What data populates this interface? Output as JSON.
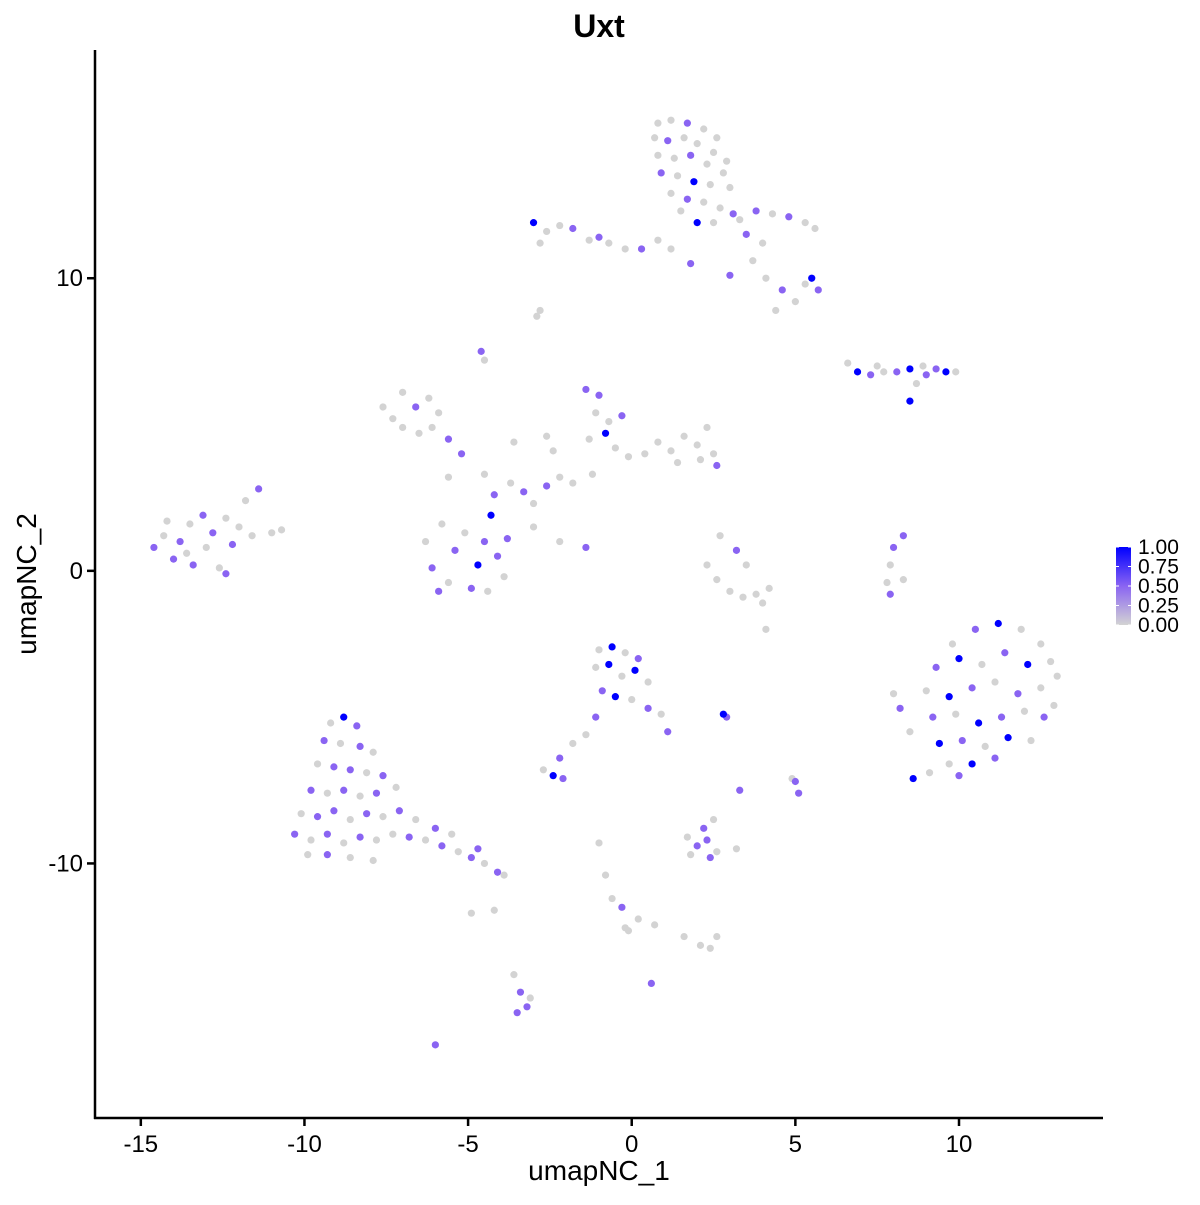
{
  "chart_data": {
    "type": "scatter",
    "title": "Uxt",
    "xlabel": "umapNC_1",
    "ylabel": "umapNC_2",
    "xlim": [
      -16.4,
      14.4
    ],
    "ylim": [
      -18.7,
      17.8
    ],
    "x_ticks": [
      -15,
      -10,
      -5,
      0,
      5,
      10
    ],
    "x_tick_labels": [
      "-15",
      "-10",
      "-5",
      "0",
      "5",
      "10"
    ],
    "y_ticks": [
      -10,
      0,
      10
    ],
    "y_tick_labels": [
      "-10",
      "0",
      "10"
    ],
    "grid": false,
    "legend": {
      "placement": "right",
      "type": "colorbar",
      "range": [
        0,
        1
      ],
      "ticks": [
        1.0,
        0.75,
        0.5,
        0.25,
        0.0
      ],
      "tick_labels": [
        "1.00",
        "0.75",
        "0.50",
        "0.25",
        "0.00"
      ]
    },
    "colors": {
      "low": "#d3d3d3",
      "mid": "#8a64f2",
      "high": "#0000ff"
    },
    "point_fields": [
      "x",
      "y",
      "expression"
    ],
    "points": [
      [
        0.8,
        15.3,
        0
      ],
      [
        1.2,
        15.4,
        0
      ],
      [
        1.7,
        15.3,
        0.5
      ],
      [
        2.2,
        15.1,
        0
      ],
      [
        2.6,
        14.8,
        0
      ],
      [
        0.7,
        14.8,
        0
      ],
      [
        1.1,
        14.7,
        0.5
      ],
      [
        1.6,
        14.8,
        0
      ],
      [
        2.0,
        14.6,
        0
      ],
      [
        2.5,
        14.3,
        0
      ],
      [
        2.9,
        14.0,
        0
      ],
      [
        0.8,
        14.2,
        0
      ],
      [
        1.3,
        14.1,
        0
      ],
      [
        1.8,
        14.2,
        0.5
      ],
      [
        2.3,
        13.9,
        0
      ],
      [
        2.8,
        13.6,
        0
      ],
      [
        0.9,
        13.6,
        0.5
      ],
      [
        1.4,
        13.5,
        0
      ],
      [
        1.9,
        13.3,
        1
      ],
      [
        2.4,
        13.2,
        0
      ],
      [
        3.0,
        13.1,
        0
      ],
      [
        1.2,
        12.9,
        0
      ],
      [
        1.7,
        12.7,
        0.5
      ],
      [
        2.2,
        12.6,
        0
      ],
      [
        2.7,
        12.4,
        0
      ],
      [
        3.1,
        12.2,
        0.5
      ],
      [
        1.5,
        12.3,
        0
      ],
      [
        2.0,
        11.9,
        1
      ],
      [
        2.5,
        11.9,
        0
      ],
      [
        3.3,
        12.0,
        0
      ],
      [
        3.8,
        12.3,
        0.5
      ],
      [
        4.3,
        12.2,
        0
      ],
      [
        4.8,
        12.1,
        0.5
      ],
      [
        5.3,
        11.9,
        0
      ],
      [
        5.6,
        11.7,
        0
      ],
      [
        3.5,
        11.5,
        0.5
      ],
      [
        4.0,
        11.2,
        0
      ],
      [
        3.7,
        10.6,
        0
      ],
      [
        4.1,
        10.0,
        0
      ],
      [
        4.6,
        9.6,
        0.5
      ],
      [
        5.0,
        9.2,
        0
      ],
      [
        4.4,
        8.9,
        0
      ],
      [
        5.5,
        10.0,
        1
      ],
      [
        5.7,
        9.6,
        0.5
      ],
      [
        5.3,
        9.8,
        0
      ],
      [
        3.0,
        10.1,
        0.5
      ],
      [
        -3.0,
        11.9,
        1
      ],
      [
        -2.6,
        11.6,
        0
      ],
      [
        -2.2,
        11.8,
        0
      ],
      [
        -1.8,
        11.7,
        0.5
      ],
      [
        -1.3,
        11.3,
        0
      ],
      [
        -2.8,
        11.2,
        0
      ],
      [
        -0.7,
        11.2,
        0
      ],
      [
        -0.2,
        11.0,
        0
      ],
      [
        0.3,
        11.0,
        0.5
      ],
      [
        0.8,
        11.3,
        0
      ],
      [
        1.2,
        11.0,
        0
      ],
      [
        1.8,
        10.5,
        0.5
      ],
      [
        -1.0,
        11.4,
        0.5
      ],
      [
        -2.8,
        8.9,
        0
      ],
      [
        -2.9,
        8.7,
        0
      ],
      [
        -4.6,
        7.5,
        0.5
      ],
      [
        -4.5,
        7.2,
        0
      ],
      [
        6.6,
        7.1,
        0
      ],
      [
        6.9,
        6.8,
        1
      ],
      [
        7.3,
        6.7,
        0.5
      ],
      [
        7.7,
        6.8,
        0
      ],
      [
        8.1,
        6.8,
        0.5
      ],
      [
        8.5,
        6.9,
        1
      ],
      [
        8.9,
        7.0,
        0
      ],
      [
        9.3,
        6.9,
        0.5
      ],
      [
        9.6,
        6.8,
        1
      ],
      [
        9.9,
        6.8,
        0
      ],
      [
        8.7,
        6.4,
        0
      ],
      [
        8.5,
        5.8,
        1
      ],
      [
        7.5,
        7.0,
        0
      ],
      [
        9.0,
        6.7,
        0.5
      ],
      [
        -14.6,
        0.8,
        0.5
      ],
      [
        -14.3,
        1.2,
        0
      ],
      [
        -14.0,
        0.4,
        0.5
      ],
      [
        -13.8,
        1.0,
        0.5
      ],
      [
        -13.5,
        1.6,
        0
      ],
      [
        -13.4,
        0.2,
        0.5
      ],
      [
        -13.1,
        1.9,
        0.5
      ],
      [
        -13.0,
        0.8,
        0
      ],
      [
        -12.8,
        1.3,
        0.5
      ],
      [
        -12.6,
        0.1,
        0
      ],
      [
        -12.4,
        1.8,
        0
      ],
      [
        -12.2,
        0.9,
        0.5
      ],
      [
        -12.0,
        1.5,
        0
      ],
      [
        -11.8,
        2.4,
        0
      ],
      [
        -11.6,
        1.2,
        0
      ],
      [
        -11.4,
        2.8,
        0.5
      ],
      [
        -11.0,
        1.3,
        0
      ],
      [
        -10.7,
        1.4,
        0
      ],
      [
        -12.4,
        -0.1,
        0.5
      ],
      [
        -14.2,
        1.7,
        0
      ],
      [
        -13.6,
        0.6,
        0
      ],
      [
        -7.6,
        5.6,
        0
      ],
      [
        -7.3,
        5.2,
        0
      ],
      [
        -7.0,
        6.1,
        0
      ],
      [
        -6.6,
        5.6,
        0.5
      ],
      [
        -6.2,
        5.9,
        0
      ],
      [
        -5.9,
        5.4,
        0
      ],
      [
        -7.0,
        4.9,
        0
      ],
      [
        -6.5,
        4.7,
        0
      ],
      [
        -5.6,
        4.5,
        0.5
      ],
      [
        -5.2,
        4.0,
        0.5
      ],
      [
        -6.1,
        4.9,
        0
      ],
      [
        -6.3,
        1.0,
        0
      ],
      [
        -6.1,
        0.1,
        0.5
      ],
      [
        -5.8,
        1.6,
        0
      ],
      [
        -5.6,
        -0.4,
        0
      ],
      [
        -5.4,
        0.7,
        0.5
      ],
      [
        -5.1,
        1.3,
        0
      ],
      [
        -4.9,
        -0.6,
        0.5
      ],
      [
        -4.7,
        0.2,
        1
      ],
      [
        -4.5,
        1.0,
        0.5
      ],
      [
        -4.3,
        1.9,
        1
      ],
      [
        -4.1,
        0.5,
        0.5
      ],
      [
        -3.9,
        -0.2,
        0
      ],
      [
        -3.8,
        1.1,
        0.5
      ],
      [
        -5.9,
        -0.7,
        0.5
      ],
      [
        -4.4,
        -0.7,
        0
      ],
      [
        -4.5,
        3.3,
        0
      ],
      [
        -4.2,
        2.6,
        0.5
      ],
      [
        -3.7,
        3.0,
        0
      ],
      [
        -3.3,
        2.7,
        0.5
      ],
      [
        -3.0,
        2.3,
        0
      ],
      [
        -2.6,
        2.9,
        0.5
      ],
      [
        -2.2,
        3.2,
        0
      ],
      [
        -1.8,
        3.0,
        0
      ],
      [
        -1.2,
        3.3,
        0
      ],
      [
        -3.0,
        1.5,
        0
      ],
      [
        -2.2,
        1.0,
        0
      ],
      [
        -1.4,
        0.8,
        0.5
      ],
      [
        -2.4,
        4.1,
        0
      ],
      [
        -3.6,
        4.4,
        0
      ],
      [
        -5.6,
        3.2,
        0
      ],
      [
        -2.6,
        4.6,
        0
      ],
      [
        -1.4,
        6.2,
        0.5
      ],
      [
        -1.0,
        6.0,
        0.5
      ],
      [
        -1.1,
        5.4,
        0
      ],
      [
        -0.7,
        5.1,
        0
      ],
      [
        -0.3,
        5.3,
        0.5
      ],
      [
        -0.8,
        4.7,
        1
      ],
      [
        -0.5,
        4.2,
        0
      ],
      [
        -0.1,
        3.9,
        0
      ],
      [
        -1.3,
        4.5,
        0
      ],
      [
        0.4,
        4.0,
        0
      ],
      [
        0.8,
        4.4,
        0
      ],
      [
        1.2,
        4.1,
        0
      ],
      [
        1.6,
        4.6,
        0
      ],
      [
        2.0,
        4.3,
        0
      ],
      [
        2.3,
        4.9,
        0
      ],
      [
        2.5,
        4.0,
        0
      ],
      [
        2.6,
        3.6,
        0.5
      ],
      [
        2.1,
        3.8,
        0
      ],
      [
        1.4,
        3.7,
        0
      ],
      [
        2.3,
        0.2,
        0
      ],
      [
        2.6,
        -0.3,
        0
      ],
      [
        3.0,
        -0.7,
        0
      ],
      [
        3.4,
        -0.9,
        0
      ],
      [
        3.8,
        -0.8,
        0
      ],
      [
        4.2,
        -0.6,
        0
      ],
      [
        3.2,
        0.7,
        0.5
      ],
      [
        3.5,
        0.2,
        0
      ],
      [
        2.7,
        1.2,
        0
      ],
      [
        4.0,
        -1.1,
        0
      ],
      [
        4.1,
        -2.0,
        0
      ],
      [
        8.3,
        1.2,
        0.5
      ],
      [
        8.0,
        0.8,
        0.5
      ],
      [
        7.9,
        0.2,
        0
      ],
      [
        7.8,
        -0.4,
        0
      ],
      [
        7.9,
        -0.8,
        0.5
      ],
      [
        8.3,
        -0.3,
        0
      ],
      [
        9.8,
        -2.5,
        0
      ],
      [
        10.5,
        -2.0,
        0.5
      ],
      [
        11.2,
        -1.8,
        1
      ],
      [
        11.9,
        -2.0,
        0
      ],
      [
        12.5,
        -2.5,
        0
      ],
      [
        9.3,
        -3.3,
        0.5
      ],
      [
        10.0,
        -3.0,
        1
      ],
      [
        10.7,
        -3.2,
        0
      ],
      [
        11.4,
        -2.8,
        0.5
      ],
      [
        12.1,
        -3.2,
        1
      ],
      [
        12.8,
        -3.1,
        0
      ],
      [
        9.0,
        -4.1,
        0
      ],
      [
        9.7,
        -4.3,
        1
      ],
      [
        10.4,
        -4.0,
        0.5
      ],
      [
        11.1,
        -3.8,
        0
      ],
      [
        11.8,
        -4.2,
        0.5
      ],
      [
        12.5,
        -4.0,
        0
      ],
      [
        13.0,
        -3.6,
        0
      ],
      [
        9.2,
        -5.0,
        0.5
      ],
      [
        9.9,
        -4.9,
        0
      ],
      [
        10.6,
        -5.2,
        1
      ],
      [
        11.3,
        -5.0,
        0.5
      ],
      [
        12.0,
        -4.8,
        0
      ],
      [
        12.6,
        -5.0,
        0.5
      ],
      [
        9.4,
        -5.9,
        1
      ],
      [
        10.1,
        -5.8,
        0.5
      ],
      [
        10.8,
        -6.0,
        0
      ],
      [
        11.5,
        -5.7,
        1
      ],
      [
        12.2,
        -5.8,
        0
      ],
      [
        9.7,
        -6.6,
        0
      ],
      [
        10.4,
        -6.6,
        1
      ],
      [
        11.1,
        -6.4,
        0.5
      ],
      [
        8.2,
        -4.7,
        0.5
      ],
      [
        8.5,
        -5.5,
        0
      ],
      [
        8.6,
        -7.1,
        1
      ],
      [
        9.1,
        -6.9,
        0
      ],
      [
        10.0,
        -7.0,
        0.5
      ],
      [
        8.0,
        -4.2,
        0
      ],
      [
        12.9,
        -4.6,
        0
      ],
      [
        -1.0,
        -2.7,
        0
      ],
      [
        -0.6,
        -2.6,
        1
      ],
      [
        -0.2,
        -2.8,
        0
      ],
      [
        0.2,
        -3.0,
        0.5
      ],
      [
        -1.1,
        -3.3,
        0
      ],
      [
        -0.7,
        -3.2,
        1
      ],
      [
        -0.3,
        -3.6,
        0
      ],
      [
        0.1,
        -3.4,
        1
      ],
      [
        0.5,
        -3.8,
        0
      ],
      [
        -0.9,
        -4.1,
        0.5
      ],
      [
        -0.5,
        -4.3,
        1
      ],
      [
        0.0,
        -4.4,
        0
      ],
      [
        0.5,
        -4.7,
        0.5
      ],
      [
        0.9,
        -4.9,
        0
      ],
      [
        1.1,
        -5.5,
        0.5
      ],
      [
        -1.1,
        -5.0,
        0.5
      ],
      [
        -1.4,
        -5.6,
        0
      ],
      [
        -1.8,
        -5.9,
        0
      ],
      [
        -2.2,
        -6.4,
        0.5
      ],
      [
        -2.7,
        -6.8,
        0
      ],
      [
        -2.4,
        -7.0,
        1
      ],
      [
        -2.1,
        -7.1,
        0.5
      ],
      [
        2.8,
        -4.9,
        1
      ],
      [
        2.9,
        -5.0,
        0.5
      ],
      [
        3.3,
        -7.5,
        0.5
      ],
      [
        5.0,
        -7.2,
        0.5
      ],
      [
        5.1,
        -7.6,
        0.5
      ],
      [
        4.9,
        -7.1,
        0
      ],
      [
        1.7,
        -9.1,
        0
      ],
      [
        2.0,
        -9.4,
        0.5
      ],
      [
        2.3,
        -9.2,
        0.5
      ],
      [
        2.6,
        -9.6,
        0
      ],
      [
        2.4,
        -9.8,
        0.5
      ],
      [
        1.8,
        -9.7,
        0
      ],
      [
        2.2,
        -8.8,
        0.5
      ],
      [
        3.2,
        -9.5,
        0
      ],
      [
        2.5,
        -8.5,
        0
      ],
      [
        -1.0,
        -9.3,
        0
      ],
      [
        -0.8,
        -10.4,
        0
      ],
      [
        -0.6,
        -11.2,
        0
      ],
      [
        -0.3,
        -11.5,
        0.5
      ],
      [
        -0.2,
        -12.2,
        0
      ],
      [
        0.2,
        -11.9,
        0
      ],
      [
        0.7,
        -12.1,
        0
      ],
      [
        1.6,
        -12.5,
        0
      ],
      [
        2.1,
        -12.8,
        0
      ],
      [
        2.4,
        -12.9,
        0
      ],
      [
        2.6,
        -12.5,
        0
      ],
      [
        0.6,
        -14.1,
        0.5
      ],
      [
        -0.1,
        -12.3,
        0
      ],
      [
        -3.6,
        -13.8,
        0
      ],
      [
        -3.4,
        -14.4,
        0.5
      ],
      [
        -3.2,
        -14.9,
        0.5
      ],
      [
        -3.5,
        -15.1,
        0.5
      ],
      [
        -3.1,
        -14.6,
        0
      ],
      [
        -6.0,
        -16.2,
        0.5
      ],
      [
        -4.2,
        -11.6,
        0
      ],
      [
        -4.9,
        -11.7,
        0
      ],
      [
        -9.2,
        -5.2,
        0
      ],
      [
        -8.8,
        -5.0,
        1
      ],
      [
        -8.4,
        -5.3,
        0.5
      ],
      [
        -9.4,
        -5.8,
        0.5
      ],
      [
        -8.9,
        -5.9,
        0
      ],
      [
        -8.3,
        -6.0,
        0.5
      ],
      [
        -7.9,
        -6.2,
        0
      ],
      [
        -9.6,
        -6.6,
        0
      ],
      [
        -9.1,
        -6.7,
        0.5
      ],
      [
        -8.6,
        -6.8,
        0.5
      ],
      [
        -8.1,
        -6.9,
        0
      ],
      [
        -7.6,
        -7.0,
        0.5
      ],
      [
        -9.8,
        -7.5,
        0.5
      ],
      [
        -9.3,
        -7.6,
        0
      ],
      [
        -8.8,
        -7.5,
        0.5
      ],
      [
        -8.3,
        -7.7,
        0
      ],
      [
        -7.8,
        -7.6,
        0.5
      ],
      [
        -7.2,
        -7.4,
        0
      ],
      [
        -10.1,
        -8.3,
        0
      ],
      [
        -9.6,
        -8.4,
        0.5
      ],
      [
        -9.1,
        -8.2,
        0.5
      ],
      [
        -8.6,
        -8.5,
        0
      ],
      [
        -8.1,
        -8.3,
        0.5
      ],
      [
        -7.6,
        -8.4,
        0
      ],
      [
        -7.1,
        -8.2,
        0.5
      ],
      [
        -6.6,
        -8.5,
        0
      ],
      [
        -10.3,
        -9.0,
        0.5
      ],
      [
        -9.8,
        -9.2,
        0
      ],
      [
        -9.3,
        -9.0,
        0.5
      ],
      [
        -8.8,
        -9.3,
        0
      ],
      [
        -8.3,
        -9.1,
        0.5
      ],
      [
        -7.8,
        -9.2,
        0
      ],
      [
        -7.3,
        -9.0,
        0
      ],
      [
        -6.8,
        -9.1,
        0.5
      ],
      [
        -6.3,
        -9.2,
        0
      ],
      [
        -5.8,
        -9.4,
        0.5
      ],
      [
        -5.3,
        -9.6,
        0
      ],
      [
        -4.9,
        -9.8,
        0.5
      ],
      [
        -4.5,
        -10.0,
        0
      ],
      [
        -4.1,
        -10.3,
        0.5
      ],
      [
        -3.9,
        -10.4,
        0
      ],
      [
        -9.9,
        -9.7,
        0
      ],
      [
        -9.3,
        -9.7,
        0.5
      ],
      [
        -8.6,
        -9.8,
        0
      ],
      [
        -7.9,
        -9.9,
        0
      ],
      [
        -6.0,
        -8.8,
        0.5
      ],
      [
        -5.5,
        -9.0,
        0
      ],
      [
        -4.7,
        -9.5,
        0.5
      ]
    ]
  }
}
